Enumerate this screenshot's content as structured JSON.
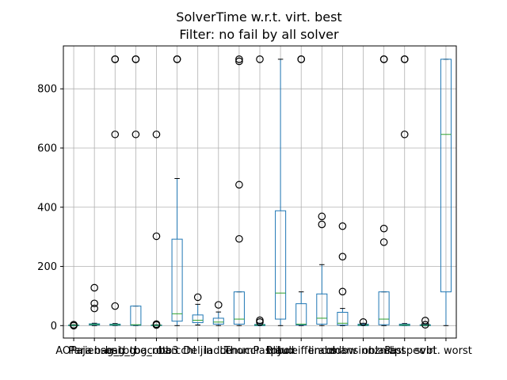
{
  "chart_data": {
    "type": "box",
    "title_lines": [
      "SolverTime w.r.t. virt. best",
      "Filter: no fail by all solver"
    ],
    "xlabel": "",
    "ylabel": "",
    "ylim": [
      -42,
      945
    ],
    "yticks": [
      0,
      200,
      400,
      600,
      800
    ],
    "grid": true,
    "categories": [
      "AOPaja",
      "Pariensesi",
      "bag_tbg",
      "bag_tbg_rot",
      "bacobb3",
      "barcchl",
      "Deljin",
      "laddu",
      "Lenucci",
      "ThomPaspbox",
      "triJud",
      "Blauleifferabs",
      "lincol",
      "ddbw",
      "mansinnzmb",
      "oblacast",
      "Ripspec",
      "svbl",
      "virt. worst"
    ],
    "box_stats": [
      {
        "q1": 0,
        "median": 1,
        "q3": 2,
        "whislo": 0,
        "whishi": 3,
        "fliers": [
          0,
          3
        ]
      },
      {
        "q1": 2,
        "median": 4,
        "q3": 6,
        "whislo": 0,
        "whishi": 8,
        "fliers": [
          58,
          75,
          128
        ]
      },
      {
        "q1": 1,
        "median": 3,
        "q3": 5,
        "whislo": 0,
        "whishi": 7,
        "fliers": [
          66,
          646,
          900,
          900
        ]
      },
      {
        "q1": 1,
        "median": 3,
        "q3": 66,
        "whislo": 0,
        "whishi": 66,
        "fliers": [
          646,
          900,
          900
        ]
      },
      {
        "q1": 0,
        "median": 1,
        "q3": 2,
        "whislo": 0,
        "whishi": 3,
        "fliers": [
          2,
          5,
          302,
          646
        ]
      },
      {
        "q1": 15,
        "median": 40,
        "q3": 292,
        "whislo": 0,
        "whishi": 497,
        "fliers": [
          900,
          900
        ]
      },
      {
        "q1": 10,
        "median": 18,
        "q3": 36,
        "whislo": 2,
        "whishi": 72,
        "fliers": [
          96
        ]
      },
      {
        "q1": 5,
        "median": 12,
        "q3": 25,
        "whislo": 0,
        "whishi": 46,
        "fliers": [
          70
        ]
      },
      {
        "q1": 5,
        "median": 22,
        "q3": 114,
        "whislo": 0,
        "whishi": 114,
        "fliers": [
          293,
          476,
          893,
          900
        ]
      },
      {
        "q1": 0,
        "median": 2,
        "q3": 4,
        "whislo": 0,
        "whishi": 8,
        "fliers": [
          12,
          18,
          900
        ]
      },
      {
        "q1": 22,
        "median": 110,
        "q3": 388,
        "whislo": 0,
        "whishi": 900,
        "fliers": []
      },
      {
        "q1": 2,
        "median": 5,
        "q3": 74,
        "whislo": 0,
        "whishi": 114,
        "fliers": [
          900,
          900
        ]
      },
      {
        "q1": 5,
        "median": 25,
        "q3": 107,
        "whislo": 0,
        "whishi": 206,
        "fliers": [
          342,
          369
        ]
      },
      {
        "q1": 2,
        "median": 8,
        "q3": 45,
        "whislo": 0,
        "whishi": 58,
        "fliers": [
          115,
          233,
          336
        ]
      },
      {
        "q1": 0,
        "median": 2,
        "q3": 5,
        "whislo": 0,
        "whishi": 8,
        "fliers": [
          12
        ]
      },
      {
        "q1": 3,
        "median": 22,
        "q3": 114,
        "whislo": 0,
        "whishi": 114,
        "fliers": [
          282,
          328,
          900,
          900
        ]
      },
      {
        "q1": 0,
        "median": 2,
        "q3": 5,
        "whislo": 0,
        "whishi": 7,
        "fliers": [
          646,
          900,
          900
        ]
      },
      {
        "q1": 0,
        "median": 1,
        "q3": 3,
        "whislo": 0,
        "whishi": 5,
        "fliers": [
          3,
          17
        ]
      },
      {
        "q1": 114,
        "median": 646,
        "q3": 900,
        "whislo": 0,
        "whishi": 900,
        "fliers": []
      }
    ]
  }
}
